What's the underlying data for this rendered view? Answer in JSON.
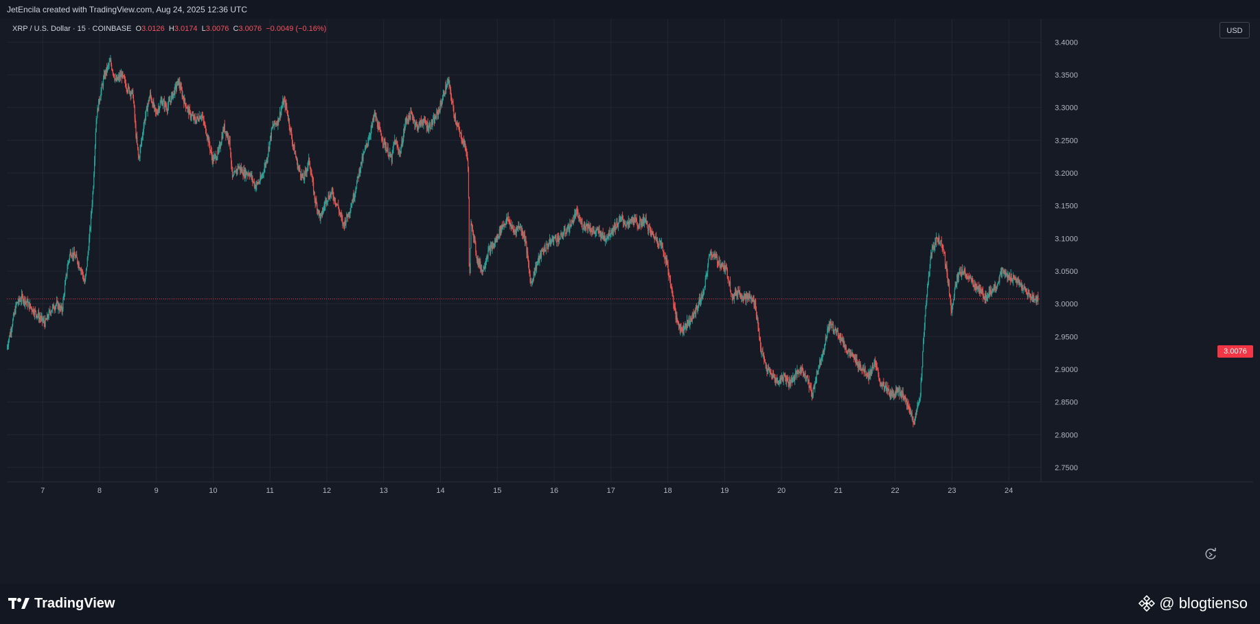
{
  "header": {
    "credit": "JetEncila created with TradingView.com, Aug 24, 2025 12:36 UTC"
  },
  "legend": {
    "symbol": "XRP / U.S. Dollar · 15 · COINBASE",
    "o_label": "O",
    "o": "3.0126",
    "h_label": "H",
    "h": "3.0174",
    "l_label": "L",
    "l": "3.0076",
    "c_label": "C",
    "c": "3.0076",
    "change": "−0.0049 (−0.16%)"
  },
  "currency_button": "USD",
  "last_price_tag": "3.0076",
  "footer": {
    "brand": "TradingView",
    "watermark": "@ blogtienso"
  },
  "colors": {
    "up": "#26a69a",
    "down": "#ef5350",
    "background": "#161a25",
    "grid": "#242733",
    "price_line": "#f23645"
  },
  "icons": [
    "tradingview-logo-icon",
    "binance-diamond-icon",
    "refresh-icon"
  ],
  "chart_data": {
    "type": "line",
    "title": "",
    "xlabel": "",
    "ylabel": "",
    "x_ticks": [
      {
        "label": "7",
        "day": 7
      },
      {
        "label": "8",
        "day": 8
      },
      {
        "label": "9",
        "day": 9
      },
      {
        "label": "10",
        "day": 10
      },
      {
        "label": "11",
        "day": 11
      },
      {
        "label": "12",
        "day": 12
      },
      {
        "label": "13",
        "day": 13
      },
      {
        "label": "14",
        "day": 14
      },
      {
        "label": "15",
        "day": 15
      },
      {
        "label": "16",
        "day": 16
      },
      {
        "label": "17",
        "day": 17
      },
      {
        "label": "18",
        "day": 18
      },
      {
        "label": "19",
        "day": 19
      },
      {
        "label": "20",
        "day": 20
      },
      {
        "label": "21",
        "day": 21
      },
      {
        "label": "22",
        "day": 22
      },
      {
        "label": "23",
        "day": 23
      },
      {
        "label": "24",
        "day": 24
      }
    ],
    "y_ticks": [
      "3.4000",
      "3.3500",
      "3.3000",
      "3.2500",
      "3.2000",
      "3.1500",
      "3.1000",
      "3.0500",
      "3.0000",
      "2.9500",
      "2.9000",
      "2.8500",
      "2.8000",
      "2.7500"
    ],
    "xlim": [
      6.37,
      24.53
    ],
    "ylim": [
      2.73,
      3.435
    ],
    "grid": true,
    "series": [
      {
        "values": [
          [
            6.37,
            2.93
          ],
          [
            6.45,
            2.96
          ],
          [
            6.55,
            3.0
          ],
          [
            6.65,
            3.01
          ],
          [
            6.75,
            3.0
          ],
          [
            6.85,
            2.99
          ],
          [
            6.95,
            2.98
          ],
          [
            7.05,
            2.97
          ],
          [
            7.15,
            2.99
          ],
          [
            7.25,
            3.0
          ],
          [
            7.35,
            2.99
          ],
          [
            7.45,
            3.06
          ],
          [
            7.5,
            3.08
          ],
          [
            7.6,
            3.07
          ],
          [
            7.7,
            3.05
          ],
          [
            7.75,
            3.03
          ],
          [
            7.8,
            3.07
          ],
          [
            7.85,
            3.12
          ],
          [
            7.9,
            3.18
          ],
          [
            7.95,
            3.28
          ],
          [
            8.0,
            3.31
          ],
          [
            8.1,
            3.35
          ],
          [
            8.2,
            3.37
          ],
          [
            8.3,
            3.34
          ],
          [
            8.4,
            3.35
          ],
          [
            8.5,
            3.33
          ],
          [
            8.6,
            3.32
          ],
          [
            8.65,
            3.26
          ],
          [
            8.7,
            3.22
          ],
          [
            8.8,
            3.28
          ],
          [
            8.9,
            3.32
          ],
          [
            9.0,
            3.29
          ],
          [
            9.1,
            3.31
          ],
          [
            9.2,
            3.3
          ],
          [
            9.3,
            3.32
          ],
          [
            9.4,
            3.34
          ],
          [
            9.5,
            3.31
          ],
          [
            9.6,
            3.29
          ],
          [
            9.7,
            3.28
          ],
          [
            9.8,
            3.29
          ],
          [
            9.9,
            3.26
          ],
          [
            10.0,
            3.22
          ],
          [
            10.1,
            3.23
          ],
          [
            10.2,
            3.27
          ],
          [
            10.3,
            3.25
          ],
          [
            10.35,
            3.19
          ],
          [
            10.45,
            3.21
          ],
          [
            10.55,
            3.2
          ],
          [
            10.65,
            3.2
          ],
          [
            10.75,
            3.18
          ],
          [
            10.85,
            3.19
          ],
          [
            10.95,
            3.22
          ],
          [
            11.05,
            3.27
          ],
          [
            11.15,
            3.28
          ],
          [
            11.25,
            3.31
          ],
          [
            11.3,
            3.3
          ],
          [
            11.4,
            3.25
          ],
          [
            11.5,
            3.21
          ],
          [
            11.6,
            3.19
          ],
          [
            11.7,
            3.22
          ],
          [
            11.8,
            3.16
          ],
          [
            11.9,
            3.13
          ],
          [
            12.0,
            3.16
          ],
          [
            12.1,
            3.17
          ],
          [
            12.2,
            3.15
          ],
          [
            12.3,
            3.12
          ],
          [
            12.4,
            3.14
          ],
          [
            12.5,
            3.17
          ],
          [
            12.6,
            3.21
          ],
          [
            12.7,
            3.24
          ],
          [
            12.8,
            3.27
          ],
          [
            12.85,
            3.29
          ],
          [
            12.95,
            3.26
          ],
          [
            13.05,
            3.24
          ],
          [
            13.15,
            3.22
          ],
          [
            13.2,
            3.25
          ],
          [
            13.3,
            3.23
          ],
          [
            13.4,
            3.28
          ],
          [
            13.5,
            3.29
          ],
          [
            13.6,
            3.27
          ],
          [
            13.7,
            3.28
          ],
          [
            13.8,
            3.27
          ],
          [
            13.9,
            3.28
          ],
          [
            14.0,
            3.3
          ],
          [
            14.1,
            3.33
          ],
          [
            14.15,
            3.34
          ],
          [
            14.25,
            3.29
          ],
          [
            14.35,
            3.26
          ],
          [
            14.45,
            3.24
          ],
          [
            14.5,
            3.21
          ],
          [
            14.52,
            3.02
          ],
          [
            14.55,
            3.13
          ],
          [
            14.65,
            3.07
          ],
          [
            14.75,
            3.05
          ],
          [
            14.85,
            3.08
          ],
          [
            14.95,
            3.09
          ],
          [
            15.1,
            3.12
          ],
          [
            15.2,
            3.13
          ],
          [
            15.3,
            3.11
          ],
          [
            15.4,
            3.12
          ],
          [
            15.5,
            3.1
          ],
          [
            15.6,
            3.03
          ],
          [
            15.7,
            3.06
          ],
          [
            15.8,
            3.08
          ],
          [
            15.9,
            3.09
          ],
          [
            16.0,
            3.1
          ],
          [
            16.1,
            3.1
          ],
          [
            16.2,
            3.11
          ],
          [
            16.3,
            3.12
          ],
          [
            16.4,
            3.14
          ],
          [
            16.5,
            3.12
          ],
          [
            16.6,
            3.12
          ],
          [
            16.7,
            3.11
          ],
          [
            16.8,
            3.11
          ],
          [
            16.9,
            3.1
          ],
          [
            17.0,
            3.11
          ],
          [
            17.1,
            3.12
          ],
          [
            17.2,
            3.13
          ],
          [
            17.3,
            3.12
          ],
          [
            17.4,
            3.13
          ],
          [
            17.5,
            3.12
          ],
          [
            17.6,
            3.13
          ],
          [
            17.7,
            3.11
          ],
          [
            17.8,
            3.1
          ],
          [
            17.9,
            3.09
          ],
          [
            18.0,
            3.06
          ],
          [
            18.1,
            3.01
          ],
          [
            18.15,
            2.98
          ],
          [
            18.25,
            2.96
          ],
          [
            18.35,
            2.97
          ],
          [
            18.45,
            2.98
          ],
          [
            18.55,
            3.0
          ],
          [
            18.65,
            3.02
          ],
          [
            18.75,
            3.08
          ],
          [
            18.85,
            3.07
          ],
          [
            18.95,
            3.06
          ],
          [
            19.05,
            3.05
          ],
          [
            19.15,
            3.01
          ],
          [
            19.25,
            3.02
          ],
          [
            19.35,
            3.01
          ],
          [
            19.45,
            3.01
          ],
          [
            19.55,
            3.0
          ],
          [
            19.65,
            2.93
          ],
          [
            19.75,
            2.9
          ],
          [
            19.85,
            2.89
          ],
          [
            19.95,
            2.88
          ],
          [
            20.05,
            2.89
          ],
          [
            20.15,
            2.88
          ],
          [
            20.25,
            2.89
          ],
          [
            20.35,
            2.9
          ],
          [
            20.45,
            2.89
          ],
          [
            20.55,
            2.86
          ],
          [
            20.65,
            2.9
          ],
          [
            20.75,
            2.93
          ],
          [
            20.85,
            2.97
          ],
          [
            20.95,
            2.96
          ],
          [
            21.05,
            2.95
          ],
          [
            21.15,
            2.93
          ],
          [
            21.25,
            2.92
          ],
          [
            21.35,
            2.91
          ],
          [
            21.45,
            2.9
          ],
          [
            21.55,
            2.89
          ],
          [
            21.65,
            2.91
          ],
          [
            21.75,
            2.88
          ],
          [
            21.85,
            2.87
          ],
          [
            21.95,
            2.86
          ],
          [
            22.05,
            2.87
          ],
          [
            22.15,
            2.86
          ],
          [
            22.25,
            2.84
          ],
          [
            22.35,
            2.82
          ],
          [
            22.45,
            2.86
          ],
          [
            22.55,
            3.0
          ],
          [
            22.65,
            3.08
          ],
          [
            22.75,
            3.1
          ],
          [
            22.85,
            3.09
          ],
          [
            22.95,
            3.03
          ],
          [
            23.0,
            2.99
          ],
          [
            23.1,
            3.04
          ],
          [
            23.2,
            3.05
          ],
          [
            23.3,
            3.04
          ],
          [
            23.4,
            3.03
          ],
          [
            23.5,
            3.02
          ],
          [
            23.6,
            3.01
          ],
          [
            23.7,
            3.02
          ],
          [
            23.8,
            3.03
          ],
          [
            23.9,
            3.05
          ],
          [
            24.0,
            3.04
          ],
          [
            24.1,
            3.04
          ],
          [
            24.2,
            3.03
          ],
          [
            24.3,
            3.02
          ],
          [
            24.4,
            3.01
          ],
          [
            24.5,
            3.0076
          ]
        ]
      }
    ],
    "last_price": 3.0076
  }
}
